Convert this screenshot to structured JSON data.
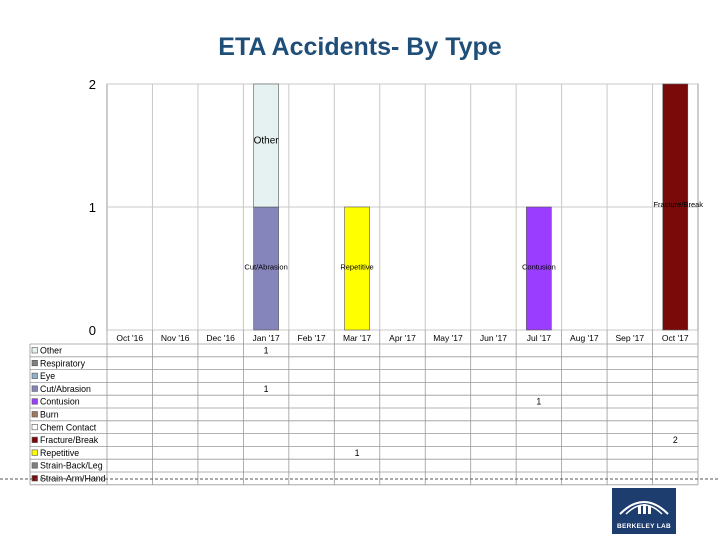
{
  "title": "ETA Accidents- By Type",
  "logo": {
    "text": "BERKELEY LAB"
  },
  "chart_data": {
    "type": "bar",
    "stacked": true,
    "categories": [
      "Oct '16",
      "Nov '16",
      "Dec '16",
      "Jan '17",
      "Feb '17",
      "Mar '17",
      "Apr '17",
      "May '17",
      "Jun '17",
      "Jul '17",
      "Aug '17",
      "Sep '17",
      "Oct '17"
    ],
    "ylim": [
      0,
      2
    ],
    "yticks": [
      0,
      1,
      2
    ],
    "grid": true,
    "legend_position": "table-left",
    "series": [
      {
        "name": "Other",
        "color": "#e6f2f2",
        "values": [
          null,
          null,
          null,
          1,
          null,
          null,
          null,
          null,
          null,
          null,
          null,
          null,
          null
        ],
        "label": "Other"
      },
      {
        "name": "Respiratory",
        "color": "#7f7f7f",
        "values": [
          null,
          null,
          null,
          null,
          null,
          null,
          null,
          null,
          null,
          null,
          null,
          null,
          null
        ],
        "label": ""
      },
      {
        "name": "Eye",
        "color": "#8fb0c8",
        "values": [
          null,
          null,
          null,
          null,
          null,
          null,
          null,
          null,
          null,
          null,
          null,
          null,
          null
        ],
        "label": ""
      },
      {
        "name": "Cut/Abrasion",
        "color": "#8585bb",
        "values": [
          null,
          null,
          null,
          1,
          null,
          null,
          null,
          null,
          null,
          null,
          null,
          null,
          null
        ],
        "label": "Cut/Abrasion"
      },
      {
        "name": "Contusion",
        "color": "#9b3dff",
        "values": [
          null,
          null,
          null,
          null,
          null,
          null,
          null,
          null,
          null,
          1,
          null,
          null,
          null
        ],
        "label": "Contusion"
      },
      {
        "name": "Burn",
        "color": "#a07860",
        "values": [
          null,
          null,
          null,
          null,
          null,
          null,
          null,
          null,
          null,
          null,
          null,
          null,
          null
        ],
        "label": ""
      },
      {
        "name": "Chem Contact",
        "color": "#ffffff",
        "values": [
          null,
          null,
          null,
          null,
          null,
          null,
          null,
          null,
          null,
          null,
          null,
          null,
          null
        ],
        "label": ""
      },
      {
        "name": "Fracture/Break",
        "color": "#7a0a0a",
        "values": [
          null,
          null,
          null,
          null,
          null,
          null,
          null,
          null,
          null,
          null,
          null,
          null,
          2
        ],
        "label": "Fracture/Break"
      },
      {
        "name": "Repetitive",
        "color": "#ffff00",
        "values": [
          null,
          null,
          null,
          null,
          null,
          1,
          null,
          null,
          null,
          null,
          null,
          null,
          null
        ],
        "label": "Repetitive"
      },
      {
        "name": "Strain-Back/Leg",
        "color": "#7f7f7f",
        "values": [
          null,
          null,
          null,
          null,
          null,
          null,
          null,
          null,
          null,
          null,
          null,
          null,
          null
        ],
        "label": ""
      },
      {
        "name": "Strain-Arm/Hand",
        "color": "#7a0a0a",
        "values": [
          null,
          null,
          null,
          null,
          null,
          null,
          null,
          null,
          null,
          null,
          null,
          null,
          null
        ],
        "label": ""
      }
    ]
  }
}
